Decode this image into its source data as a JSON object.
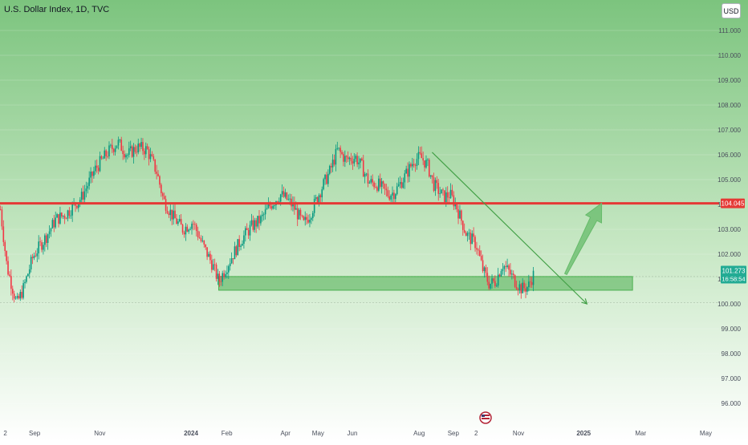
{
  "header": {
    "title": "U.S. Dollar Index, 1D, TVC",
    "currency": "USD"
  },
  "chart_data": {
    "type": "candlestick",
    "title": "U.S. Dollar Index, 1D, TVC",
    "ylim": [
      95.6,
      111.4
    ],
    "y_ticks": [
      "96.000",
      "97.000",
      "98.000",
      "99.000",
      "100.000",
      "101.000",
      "102.000",
      "103.000",
      "104.000",
      "105.000",
      "106.000",
      "107.000",
      "108.000",
      "109.000",
      "110.000",
      "111.000"
    ],
    "x_ticks": [
      "2",
      "Sep",
      "Nov",
      "2024",
      "Feb",
      "Apr",
      "May",
      "Jun",
      "Aug",
      "Sep",
      "2",
      "Nov",
      "2025",
      "Mar",
      "May"
    ],
    "price_anchors": [
      {
        "month": 0.0,
        "value": 103.8
      },
      {
        "month": 0.2,
        "value": 101.5
      },
      {
        "month": 0.5,
        "value": 100.0
      },
      {
        "month": 0.7,
        "value": 100.6
      },
      {
        "month": 1.0,
        "value": 101.9
      },
      {
        "month": 1.4,
        "value": 102.7
      },
      {
        "month": 1.7,
        "value": 103.4
      },
      {
        "month": 2.0,
        "value": 103.6
      },
      {
        "month": 2.5,
        "value": 104.3
      },
      {
        "month": 2.9,
        "value": 105.4
      },
      {
        "month": 3.3,
        "value": 106.1
      },
      {
        "month": 3.6,
        "value": 106.5
      },
      {
        "month": 3.9,
        "value": 106.0
      },
      {
        "month": 4.2,
        "value": 106.3
      },
      {
        "month": 4.5,
        "value": 106.2
      },
      {
        "month": 4.8,
        "value": 105.3
      },
      {
        "month": 5.0,
        "value": 104.2
      },
      {
        "month": 5.3,
        "value": 103.5
      },
      {
        "month": 5.6,
        "value": 103.0
      },
      {
        "month": 5.9,
        "value": 103.3
      },
      {
        "month": 6.2,
        "value": 102.4
      },
      {
        "month": 6.5,
        "value": 101.6
      },
      {
        "month": 6.7,
        "value": 100.9
      },
      {
        "month": 6.9,
        "value": 101.4
      },
      {
        "month": 7.1,
        "value": 101.9
      },
      {
        "month": 7.4,
        "value": 102.6
      },
      {
        "month": 7.7,
        "value": 103.1
      },
      {
        "month": 8.0,
        "value": 103.4
      },
      {
        "month": 8.3,
        "value": 104.0
      },
      {
        "month": 8.6,
        "value": 104.4
      },
      {
        "month": 8.8,
        "value": 104.2
      },
      {
        "month": 9.0,
        "value": 103.9
      },
      {
        "month": 9.3,
        "value": 103.2
      },
      {
        "month": 9.5,
        "value": 103.6
      },
      {
        "month": 9.8,
        "value": 104.5
      },
      {
        "month": 10.1,
        "value": 105.3
      },
      {
        "month": 10.35,
        "value": 106.2
      },
      {
        "month": 10.6,
        "value": 105.8
      },
      {
        "month": 10.9,
        "value": 105.9
      },
      {
        "month": 11.1,
        "value": 105.5
      },
      {
        "month": 11.3,
        "value": 104.9
      },
      {
        "month": 11.6,
        "value": 104.8
      },
      {
        "month": 11.9,
        "value": 104.4
      },
      {
        "month": 12.1,
        "value": 104.5
      },
      {
        "month": 12.4,
        "value": 105.1
      },
      {
        "month": 12.7,
        "value": 105.8
      },
      {
        "month": 12.9,
        "value": 105.9
      },
      {
        "month": 13.1,
        "value": 105.6
      },
      {
        "month": 13.3,
        "value": 104.8
      },
      {
        "month": 13.6,
        "value": 104.3
      },
      {
        "month": 13.8,
        "value": 104.4
      },
      {
        "month": 14.0,
        "value": 103.9
      },
      {
        "month": 14.3,
        "value": 102.8
      },
      {
        "month": 14.6,
        "value": 102.4
      },
      {
        "month": 14.8,
        "value": 101.4
      },
      {
        "month": 15.0,
        "value": 100.8
      },
      {
        "month": 15.2,
        "value": 100.9
      },
      {
        "month": 15.4,
        "value": 101.6
      },
      {
        "month": 15.6,
        "value": 101.3
      },
      {
        "month": 15.8,
        "value": 100.9
      },
      {
        "month": 16.0,
        "value": 100.6
      },
      {
        "month": 16.2,
        "value": 100.7
      },
      {
        "month": 16.4,
        "value": 101.3
      }
    ],
    "last_price": "101.273",
    "countdown": "16:58:54",
    "horizontal_level": {
      "value": 104.045,
      "label": "104.045",
      "color": "#e53935"
    },
    "support_zone": {
      "from_month": 6.7,
      "to_month": 19.4,
      "low": 100.55,
      "high": 101.1
    },
    "trendline": {
      "from": {
        "month": 13.25,
        "value": 106.1
      },
      "to": {
        "month": 18.0,
        "value": 100.0
      }
    },
    "projection_arrow": {
      "from": {
        "month": 17.35,
        "value": 101.2
      },
      "to": {
        "month": 18.45,
        "value": 104.05
      }
    },
    "colors": {
      "up": "#089981",
      "down": "#f23645",
      "level": "#e53935",
      "zone": "#5cbf5c",
      "badge": "#22ab94"
    },
    "event_icon": "us-flag-icon"
  }
}
